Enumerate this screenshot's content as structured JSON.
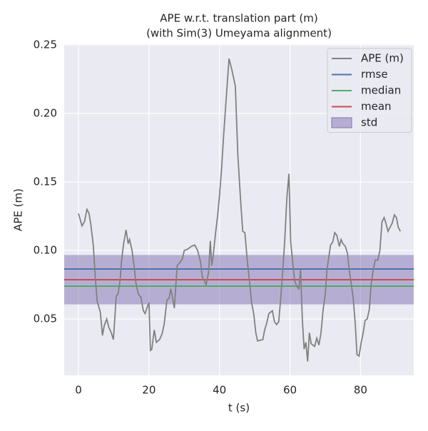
{
  "chart_data": {
    "type": "line",
    "title": "APE w.r.t. translation part (m)",
    "subtitle": "(with Sim(3) Umeyama alignment)",
    "xlabel": "t (s)",
    "ylabel": "APE (m)",
    "xlim": [
      -4.05,
      95.1
    ],
    "ylim": [
      0.0089,
      0.2505
    ],
    "xticks": [
      0,
      20,
      40,
      60,
      80
    ],
    "yticks": [
      0.05,
      {
        "value": 0.1,
        "label": "0.10"
      },
      0.15,
      {
        "value": 0.2,
        "label": "0.20"
      },
      0.25
    ],
    "grid": true,
    "legend": "upper right",
    "x": [
      0,
      1,
      1.7,
      2.4,
      3,
      3.5,
      4.2,
      4.8,
      5.3,
      6.2,
      6.8,
      7.3,
      8,
      8.6,
      9.3,
      9.9,
      10.3,
      10.7,
      11.2,
      11.8,
      12.2,
      12.8,
      13.5,
      14.1,
      14.5,
      15.2,
      15.8,
      16.3,
      17,
      17.7,
      18.4,
      18.9,
      19.4,
      20,
      20.4,
      20.8,
      21.5,
      22.1,
      23,
      23.7,
      24.3,
      25.1,
      25.7,
      26.2,
      26.8,
      27.2,
      27.6,
      28,
      28.7,
      29.5,
      30,
      31,
      32,
      33,
      33.8,
      34.6,
      35.1,
      35.7,
      36.2,
      36.9,
      37.4,
      37.8,
      38.2,
      38.9,
      39.5,
      40,
      40.6,
      41.2,
      42.7,
      43.5,
      44.5,
      45.2,
      46,
      46.6,
      47.2,
      47.9,
      48.5,
      49.1,
      49.7,
      50.3,
      50.8,
      52.3,
      52.8,
      53.4,
      54,
      55,
      55.6,
      56.2,
      56.8,
      57.3,
      57.9,
      58.5,
      59.1,
      59.7,
      60.2,
      60.8,
      61.3,
      61.9,
      62.5,
      63,
      63.5,
      64,
      64.5,
      65,
      65.5,
      66,
      67,
      67.6,
      68.2,
      68.8,
      69.4,
      70,
      70.5,
      71,
      71.5,
      72.1,
      72.7,
      73.3,
      74,
      74.5,
      75,
      75.7,
      76.3,
      76.8,
      77.4,
      77.9,
      78.5,
      79,
      79.6,
      80.2,
      80.7,
      81.3,
      81.9,
      82.5,
      83,
      83.6,
      84.2,
      84.9,
      85.5,
      86.1,
      86.7,
      87.2,
      87.8,
      88.4,
      89,
      89.6,
      90.2,
      90.7,
      91.3
    ],
    "series": [
      {
        "name": "APE (m)",
        "color": "#808080",
        "values": [
          0.127,
          0.118,
          0.121,
          0.13,
          0.127,
          0.119,
          0.104,
          0.079,
          0.063,
          0.055,
          0.038,
          0.045,
          0.05,
          0.044,
          0.04,
          0.035,
          0.05,
          0.067,
          0.068,
          0.078,
          0.092,
          0.105,
          0.115,
          0.105,
          0.108,
          0.1,
          0.088,
          0.076,
          0.068,
          0.066,
          0.056,
          0.054,
          0.058,
          0.062,
          0.027,
          0.028,
          0.042,
          0.033,
          0.035,
          0.039,
          0.046,
          0.064,
          0.065,
          0.072,
          0.064,
          0.058,
          0.074,
          0.089,
          0.091,
          0.094,
          0.1,
          0.101,
          0.103,
          0.104,
          0.1,
          0.092,
          0.081,
          0.078,
          0.075,
          0.084,
          0.107,
          0.089,
          0.096,
          0.113,
          0.126,
          0.14,
          0.16,
          0.185,
          0.24,
          0.232,
          0.22,
          0.17,
          0.136,
          0.114,
          0.113,
          0.092,
          0.078,
          0.062,
          0.054,
          0.04,
          0.034,
          0.035,
          0.042,
          0.047,
          0.054,
          0.056,
          0.048,
          0.046,
          0.048,
          0.063,
          0.083,
          0.107,
          0.138,
          0.156,
          0.106,
          0.091,
          0.078,
          0.074,
          0.072,
          0.086,
          0.05,
          0.028,
          0.033,
          0.019,
          0.04,
          0.032,
          0.03,
          0.036,
          0.031,
          0.04,
          0.057,
          0.068,
          0.086,
          0.095,
          0.104,
          0.106,
          0.113,
          0.111,
          0.103,
          0.108,
          0.105,
          0.103,
          0.098,
          0.086,
          0.075,
          0.066,
          0.047,
          0.024,
          0.023,
          0.033,
          0.039,
          0.049,
          0.05,
          0.057,
          0.075,
          0.086,
          0.093,
          0.093,
          0.1,
          0.121,
          0.124,
          0.12,
          0.114,
          0.117,
          0.12,
          0.126,
          0.124,
          0.117,
          0.114
        ]
      },
      {
        "name": "rmse",
        "color": "#4c72b0",
        "value": 0.0865
      },
      {
        "name": "median",
        "color": "#55a868",
        "value": 0.074
      },
      {
        "name": "mean",
        "color": "#c44e52",
        "value": 0.0787
      },
      {
        "name": "std",
        "color": "#8172b2",
        "value": 0.018
      }
    ]
  }
}
